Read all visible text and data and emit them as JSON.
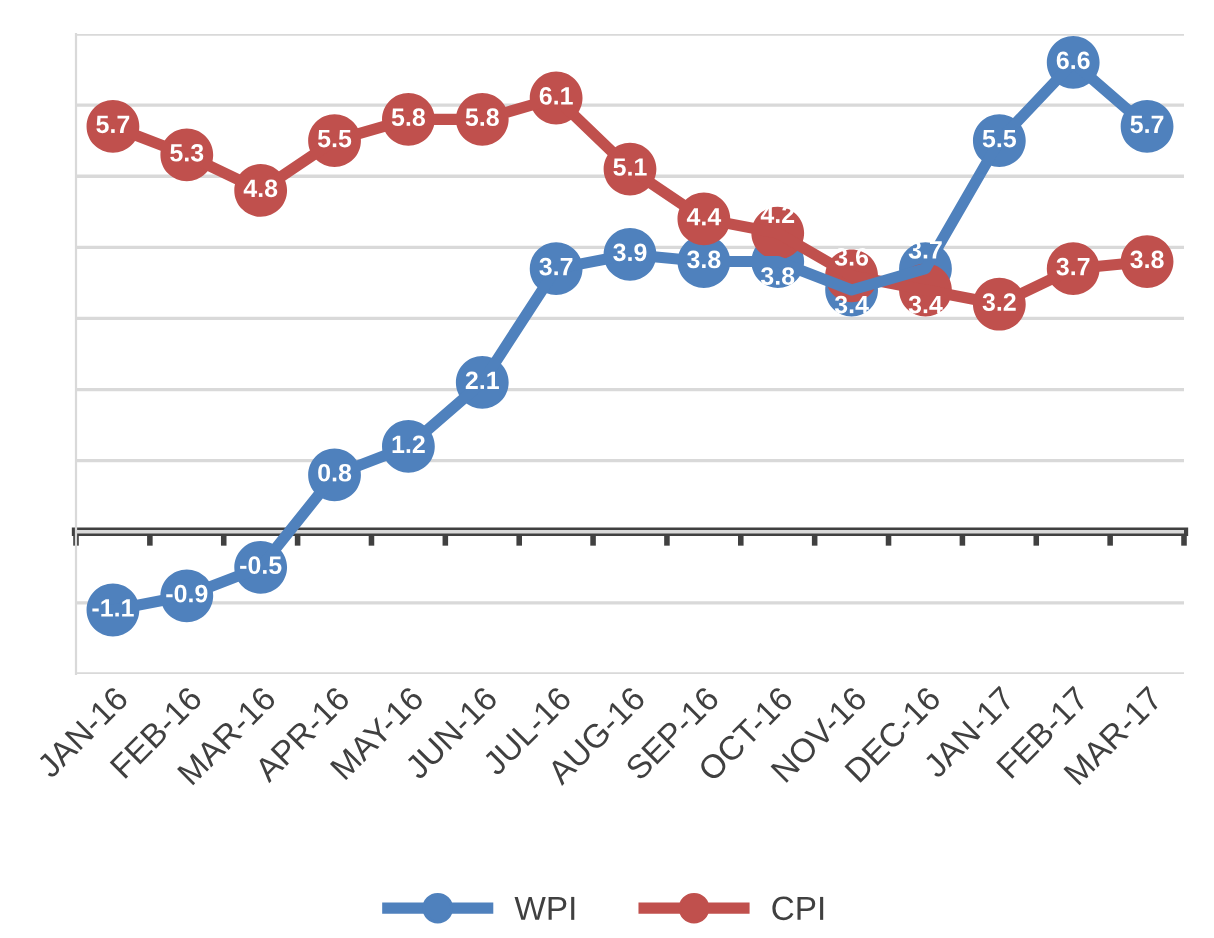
{
  "chart_data": {
    "type": "line",
    "categories": [
      "JAN-16",
      "FEB-16",
      "MAR-16",
      "APR-16",
      "MAY-16",
      "JUN-16",
      "JUL-16",
      "AUG-16",
      "SEP-16",
      "OCT-16",
      "NOV-16",
      "DEC-16",
      "JAN-17",
      "FEB-17",
      "MAR-17"
    ],
    "series": [
      {
        "name": "WPI",
        "color": "#4f81bd",
        "values": [
          -1.1,
          -0.9,
          -0.5,
          0.8,
          1.2,
          2.1,
          3.7,
          3.9,
          3.8,
          3.8,
          3.4,
          3.7,
          5.5,
          6.6,
          5.7
        ]
      },
      {
        "name": "CPI",
        "color": "#c0504d",
        "values": [
          5.7,
          5.3,
          4.8,
          5.5,
          5.8,
          5.8,
          6.1,
          5.1,
          4.4,
          4.2,
          3.6,
          3.4,
          3.2,
          3.7,
          3.8
        ]
      }
    ],
    "ylim": [
      -2,
      7
    ],
    "tick_labels": "x",
    "grid": "y",
    "legend": "bottom",
    "marker": "circle",
    "line_style": "solid",
    "data_labels": true
  }
}
